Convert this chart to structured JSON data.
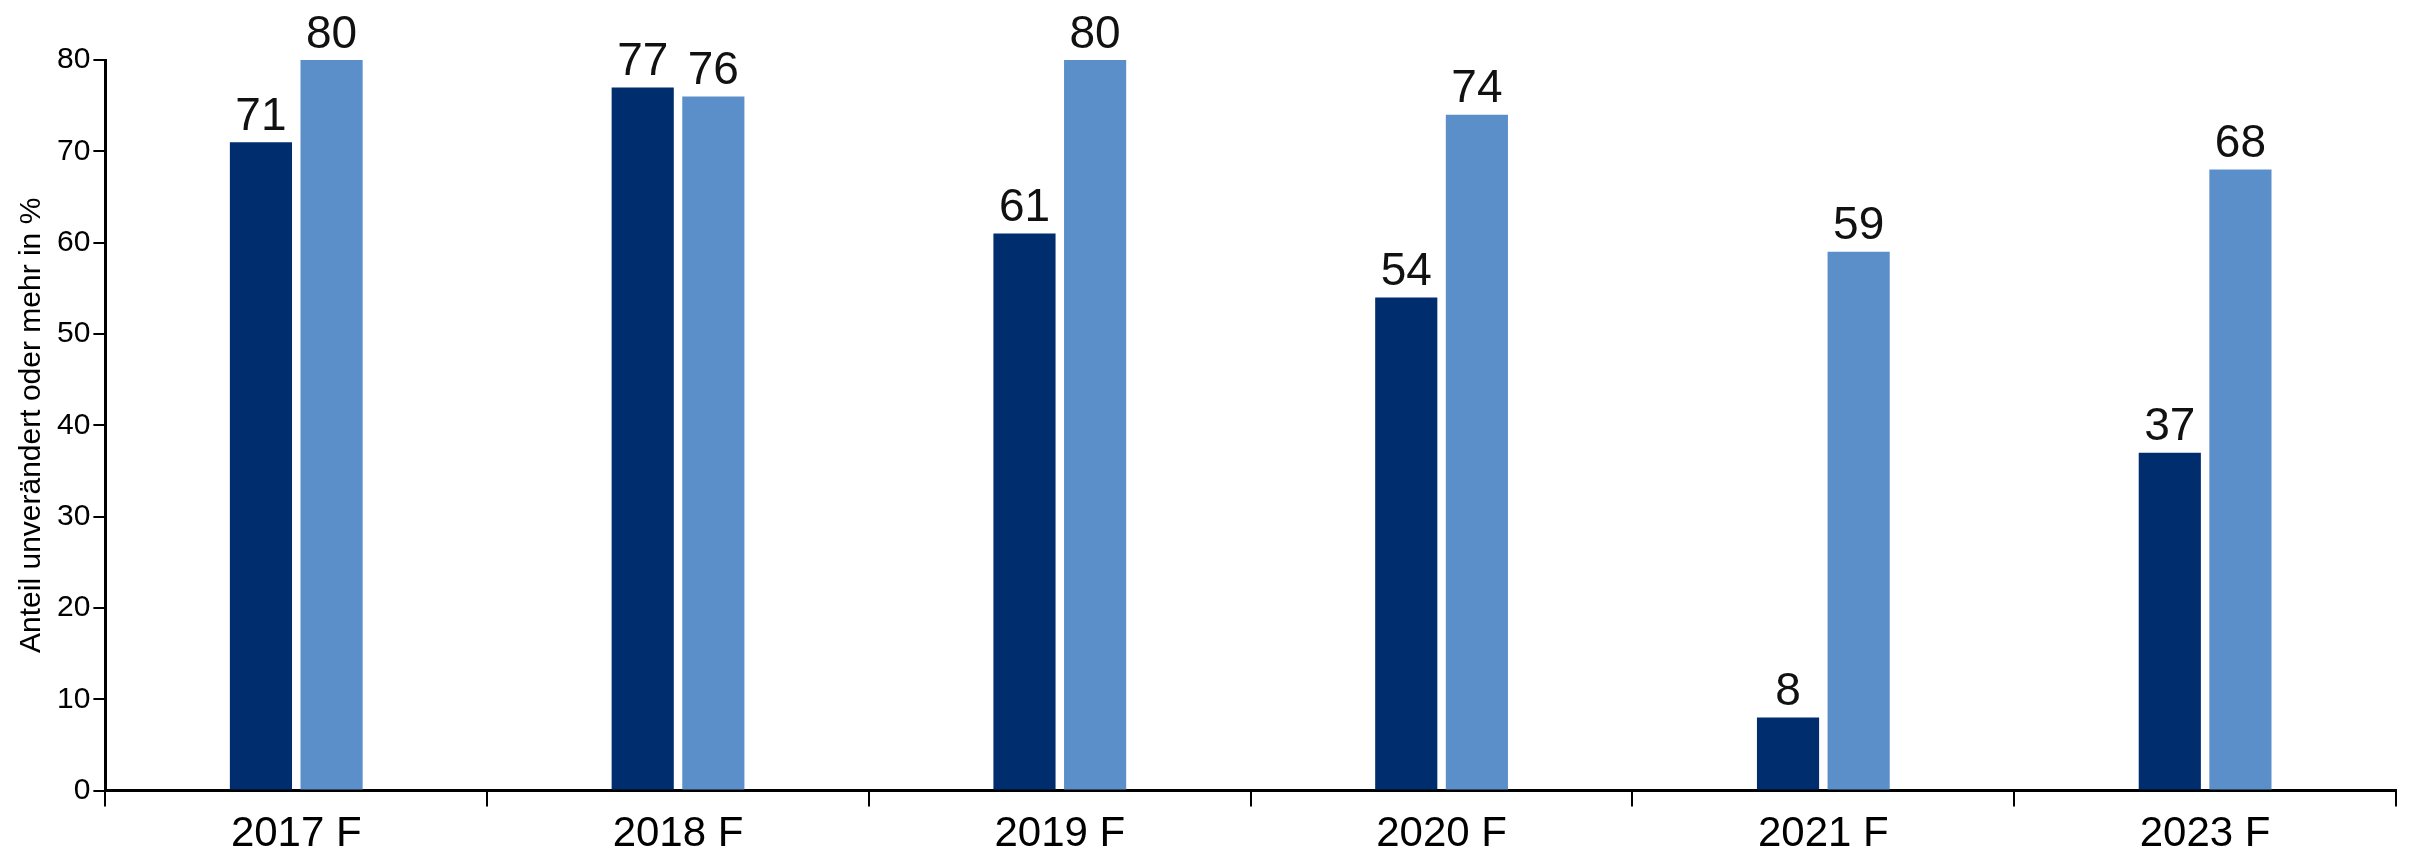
{
  "chart_data": {
    "type": "bar",
    "ylabel": "Anteil unverändert oder mehr in %",
    "categories": [
      "2017 F",
      "2018 F",
      "2019 F",
      "2020 F",
      "2021 F",
      "2023 F"
    ],
    "series": [
      {
        "color": "#002d6e",
        "values": [
          71,
          77,
          61,
          54,
          8,
          37
        ]
      },
      {
        "color": "#5b8fca",
        "values": [
          80,
          76,
          80,
          74,
          59,
          68
        ]
      }
    ],
    "ylim": [
      0,
      80
    ],
    "yticks": [
      0,
      10,
      20,
      30,
      40,
      50,
      60,
      70,
      80
    ],
    "data_labels": true,
    "legend": false
  }
}
